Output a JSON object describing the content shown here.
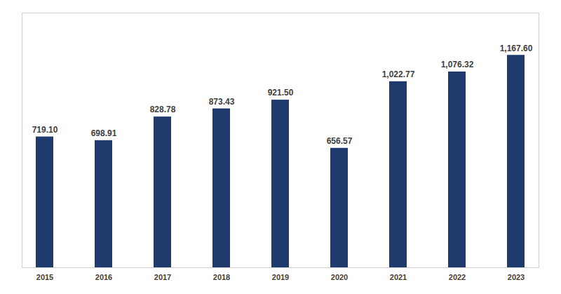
{
  "chart_data": {
    "type": "bar",
    "categories": [
      "2015",
      "2016",
      "2017",
      "2018",
      "2019",
      "2020",
      "2021",
      "2022",
      "2023"
    ],
    "values": [
      719.1,
      698.91,
      828.78,
      873.43,
      921.5,
      656.57,
      1022.77,
      1076.32,
      1167.6
    ],
    "value_labels": [
      "719.10",
      "698.91",
      "828.78",
      "873.43",
      "921.50",
      "656.57",
      "1,022.77",
      "1,076.32",
      "1,167.60"
    ],
    "color": "#1f3b6e",
    "ylim": [
      0,
      1400
    ],
    "grid": false,
    "data_labels": true,
    "tick_labels": "x"
  }
}
